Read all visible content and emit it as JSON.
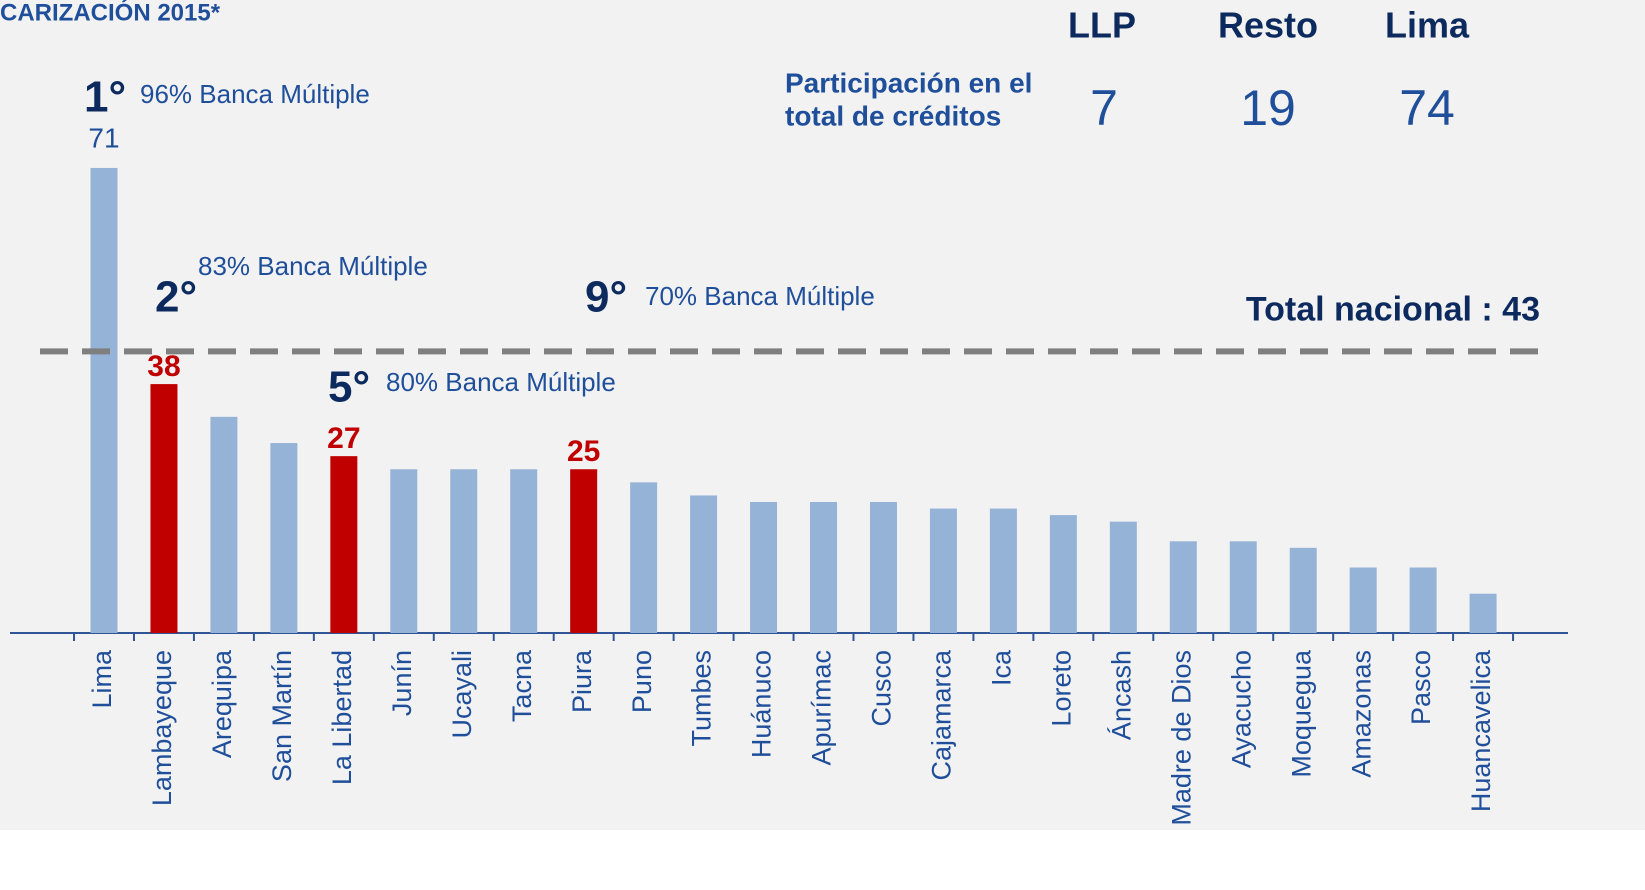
{
  "chart_data": {
    "type": "bar",
    "title": "CARIZACIÓN  2015*",
    "categories": [
      "Lima",
      "Lambayeque",
      "Arequipa",
      "San Martín",
      "La Libertad",
      "Junín",
      "Ucayali",
      "Tacna",
      "Piura",
      "Puno",
      "Tumbes",
      "Huánuco",
      "Apurímac",
      "Cusco",
      "Cajamarca",
      "Ica",
      "Loreto",
      "Áncash",
      "Madre de Dios",
      "Ayacucho",
      "Moquegua",
      "Amazonas",
      "Pasco",
      "Huancavelica"
    ],
    "values": [
      71,
      38,
      33,
      29,
      27,
      25,
      25,
      25,
      25,
      23,
      21,
      20,
      20,
      20,
      19,
      19,
      18,
      17,
      14,
      14,
      13,
      10,
      10,
      6
    ],
    "colors": [
      "#95b3d7",
      "#c00000",
      "#95b3d7",
      "#95b3d7",
      "#c00000",
      "#95b3d7",
      "#95b3d7",
      "#95b3d7",
      "#c00000",
      "#95b3d7",
      "#95b3d7",
      "#95b3d7",
      "#95b3d7",
      "#95b3d7",
      "#95b3d7",
      "#95b3d7",
      "#95b3d7",
      "#95b3d7",
      "#95b3d7",
      "#95b3d7",
      "#95b3d7",
      "#95b3d7",
      "#95b3d7",
      "#95b3d7"
    ],
    "show_label": [
      true,
      true,
      false,
      false,
      true,
      false,
      false,
      false,
      true,
      false,
      false,
      false,
      false,
      false,
      false,
      false,
      false,
      false,
      false,
      false,
      false,
      false,
      false,
      false
    ],
    "annotations": [
      {
        "rank": "1°",
        "text": "96% Banca Múltiple"
      },
      {
        "rank": "2°",
        "text": "83% Banca Múltiple"
      },
      {
        "rank": "9°",
        "text": "70% Banca Múltiple"
      },
      {
        "rank": "5°",
        "text": "80% Banca Múltiple"
      }
    ],
    "reference": {
      "label": "Total nacional : ",
      "value": 43
    },
    "share_table": {
      "columns": [
        "LLP",
        "Resto",
        "Lima"
      ],
      "row_label": [
        "Participación en el",
        "total de créditos"
      ],
      "values": [
        7,
        19,
        74
      ]
    }
  }
}
